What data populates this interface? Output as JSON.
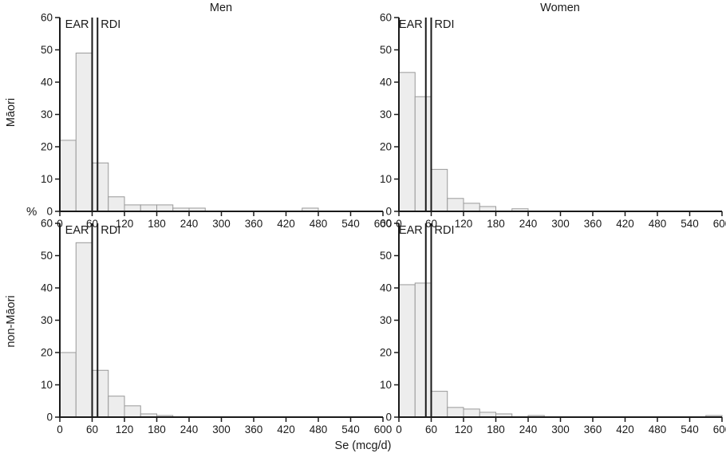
{
  "figure": {
    "col_titles": [
      "Men",
      "Women"
    ],
    "row_titles": [
      "Māori",
      "non-Māori"
    ],
    "y_axis_label": "%",
    "x_axis_label": "Se (mcg/d)"
  },
  "style": {
    "bar_fill": "#ededed",
    "bar_stroke": "#999999",
    "axis_color": "#1a1a1a"
  },
  "chart_data": [
    {
      "type": "bar",
      "panel": "Men Māori",
      "ear_label": "EAR",
      "rdi_label": "RDI",
      "ear": 60,
      "rdi": 70,
      "bin_width": 30,
      "bars": [
        [
          0,
          22
        ],
        [
          30,
          49
        ],
        [
          60,
          15
        ],
        [
          90,
          4.5
        ],
        [
          120,
          2
        ],
        [
          150,
          2
        ],
        [
          180,
          2
        ],
        [
          210,
          1
        ],
        [
          240,
          1
        ],
        [
          450,
          1
        ]
      ],
      "xlim": [
        0,
        600
      ],
      "ylim": [
        0,
        60
      ],
      "xticks": [
        0,
        60,
        120,
        180,
        240,
        300,
        360,
        420,
        480,
        540,
        600
      ],
      "yticks": [
        0,
        10,
        20,
        30,
        40,
        50,
        60
      ],
      "xlabel": "Se (mcg/d)",
      "ylabel": "%"
    },
    {
      "type": "bar",
      "panel": "Women Māori",
      "ear_label": "EAR",
      "rdi_label": "RDI",
      "ear": 50,
      "rdi": 60,
      "bin_width": 30,
      "bars": [
        [
          0,
          43
        ],
        [
          30,
          35.5
        ],
        [
          60,
          13
        ],
        [
          90,
          4
        ],
        [
          120,
          2.5
        ],
        [
          150,
          1.5
        ],
        [
          210,
          0.8
        ]
      ],
      "xlim": [
        0,
        600
      ],
      "ylim": [
        0,
        60
      ],
      "xticks": [
        0,
        60,
        120,
        180,
        240,
        300,
        360,
        420,
        480,
        540,
        600
      ],
      "yticks": [
        0,
        10,
        20,
        30,
        40,
        50,
        60
      ],
      "xlabel": "Se (mcg/d)",
      "ylabel": "%"
    },
    {
      "type": "bar",
      "panel": "Men non-Māori",
      "ear_label": "EAR",
      "rdi_label": "RDI",
      "ear": 60,
      "rdi": 70,
      "bin_width": 30,
      "bars": [
        [
          0,
          20
        ],
        [
          30,
          54
        ],
        [
          60,
          14.5
        ],
        [
          90,
          6.5
        ],
        [
          120,
          3.5
        ],
        [
          150,
          1
        ],
        [
          180,
          0.5
        ]
      ],
      "xlim": [
        0,
        600
      ],
      "ylim": [
        0,
        60
      ],
      "xticks": [
        0,
        60,
        120,
        180,
        240,
        300,
        360,
        420,
        480,
        540,
        600
      ],
      "yticks": [
        0,
        10,
        20,
        30,
        40,
        50,
        60
      ],
      "xlabel": "Se (mcg/d)",
      "ylabel": "%"
    },
    {
      "type": "bar",
      "panel": "Women non-Māori",
      "ear_label": "EAR",
      "rdi_label": "RDI",
      "ear": 50,
      "rdi": 60,
      "bin_width": 30,
      "bars": [
        [
          0,
          41
        ],
        [
          30,
          41.5
        ],
        [
          60,
          8
        ],
        [
          90,
          3
        ],
        [
          120,
          2.5
        ],
        [
          150,
          1.5
        ],
        [
          180,
          1
        ],
        [
          240,
          0.5
        ],
        [
          570,
          0.5
        ]
      ],
      "xlim": [
        0,
        600
      ],
      "ylim": [
        0,
        60
      ],
      "xticks": [
        0,
        60,
        120,
        180,
        240,
        300,
        360,
        420,
        480,
        540,
        600
      ],
      "yticks": [
        0,
        10,
        20,
        30,
        40,
        50,
        60
      ],
      "xlabel": "Se (mcg/d)",
      "ylabel": "%"
    }
  ]
}
